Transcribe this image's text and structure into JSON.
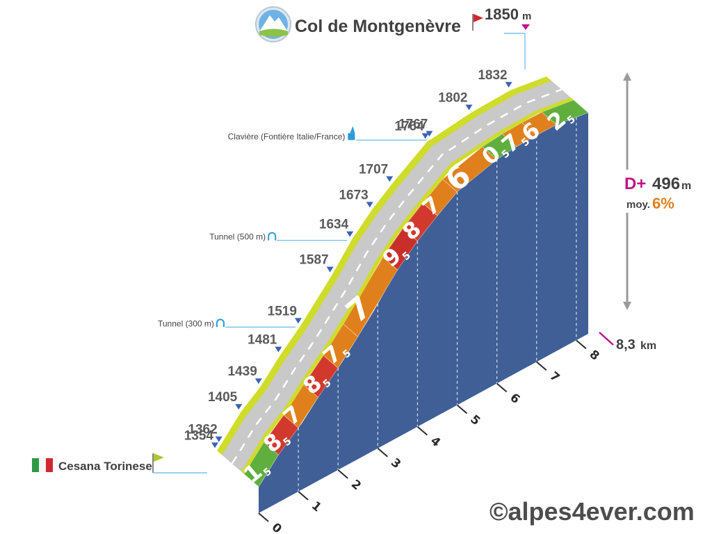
{
  "chart_data": {
    "type": "area",
    "title": "Col de Montgenèvre",
    "summit": {
      "altitude": "1850",
      "unit": "m"
    },
    "start": {
      "name": "Cesana Torinese",
      "altitude": "1354"
    },
    "total_distance": {
      "value": "8,3",
      "unit": "km"
    },
    "elevation_gain": {
      "label": "D+",
      "value": "496",
      "unit": "m"
    },
    "average_gradient": {
      "label": "moy.",
      "value": "6%"
    },
    "x_ticks": [
      "0",
      "1",
      "2",
      "3",
      "4",
      "5",
      "6",
      "7",
      "8"
    ],
    "altitude_markers": [
      {
        "km": 0.0,
        "altitude": "1354"
      },
      {
        "km": 0.1,
        "altitude": "1362"
      },
      {
        "km": 0.6,
        "altitude": "1405"
      },
      {
        "km": 1.1,
        "altitude": "1439"
      },
      {
        "km": 1.6,
        "altitude": "1481"
      },
      {
        "km": 2.1,
        "altitude": "1519"
      },
      {
        "km": 2.9,
        "altitude": "1587"
      },
      {
        "km": 3.4,
        "altitude": "1634"
      },
      {
        "km": 3.9,
        "altitude": "1673"
      },
      {
        "km": 4.4,
        "altitude": "1707"
      },
      {
        "km": 5.3,
        "altitude": "1764"
      },
      {
        "km": 5.4,
        "altitude": "1767"
      },
      {
        "km": 6.4,
        "altitude": "1802"
      },
      {
        "km": 7.4,
        "altitude": "1832"
      },
      {
        "km": 8.3,
        "altitude": "1850"
      }
    ],
    "segments": [
      {
        "from": 0,
        "to": 0.5,
        "grade": "1",
        "dec": "5",
        "color": "#5fae3e"
      },
      {
        "from": 0.5,
        "to": 1.0,
        "grade": "8",
        "dec": "5",
        "color": "#d2392c"
      },
      {
        "from": 1.0,
        "to": 1.5,
        "grade": "7",
        "dec": "",
        "color": "#e0801c"
      },
      {
        "from": 1.5,
        "to": 2.0,
        "grade": "8",
        "dec": "5",
        "color": "#d2392c"
      },
      {
        "from": 2.0,
        "to": 2.5,
        "grade": "7",
        "dec": "5",
        "color": "#e0801c"
      },
      {
        "from": 2.5,
        "to": 3.5,
        "grade": "7",
        "dec": "",
        "color": "#e0801c"
      },
      {
        "from": 3.5,
        "to": 4.0,
        "grade": "9",
        "dec": "5",
        "color": "#c92f2a"
      },
      {
        "from": 4.0,
        "to": 4.5,
        "grade": "8",
        "dec": "",
        "color": "#d2392c"
      },
      {
        "from": 4.5,
        "to": 5.0,
        "grade": "7",
        "dec": "",
        "color": "#e0801c"
      },
      {
        "from": 5.0,
        "to": 6.0,
        "grade": "6",
        "dec": "",
        "color": "#e0801c"
      },
      {
        "from": 6.0,
        "to": 6.5,
        "grade": "0",
        "dec": "5",
        "color": "#5fae3e"
      },
      {
        "from": 6.5,
        "to": 7.0,
        "grade": "7",
        "dec": "5",
        "color": "#e0801c"
      },
      {
        "from": 7.0,
        "to": 7.5,
        "grade": "6",
        "dec": "",
        "color": "#e0801c"
      },
      {
        "from": 7.5,
        "to": 8.3,
        "grade": "2",
        "dec": "5",
        "color": "#5fae3e"
      }
    ],
    "annotations": [
      {
        "km": 5.4,
        "text": "Clavière (Fontière Italie/France)",
        "icon": "church-icon"
      },
      {
        "km": 3.4,
        "text": "Tunnel (500 m)",
        "icon": "tunnel-icon"
      },
      {
        "km": 2.1,
        "text": "Tunnel (300 m)",
        "icon": "tunnel-icon"
      }
    ]
  },
  "copyright": "©alpes4ever.com",
  "colors": {
    "side": "#3f5f96",
    "road": "#c9c9c9",
    "edge": "#cfdc2b",
    "magenta": "#c0128a",
    "marker": "#3b63b5",
    "dd_orange": "#e0801c"
  }
}
